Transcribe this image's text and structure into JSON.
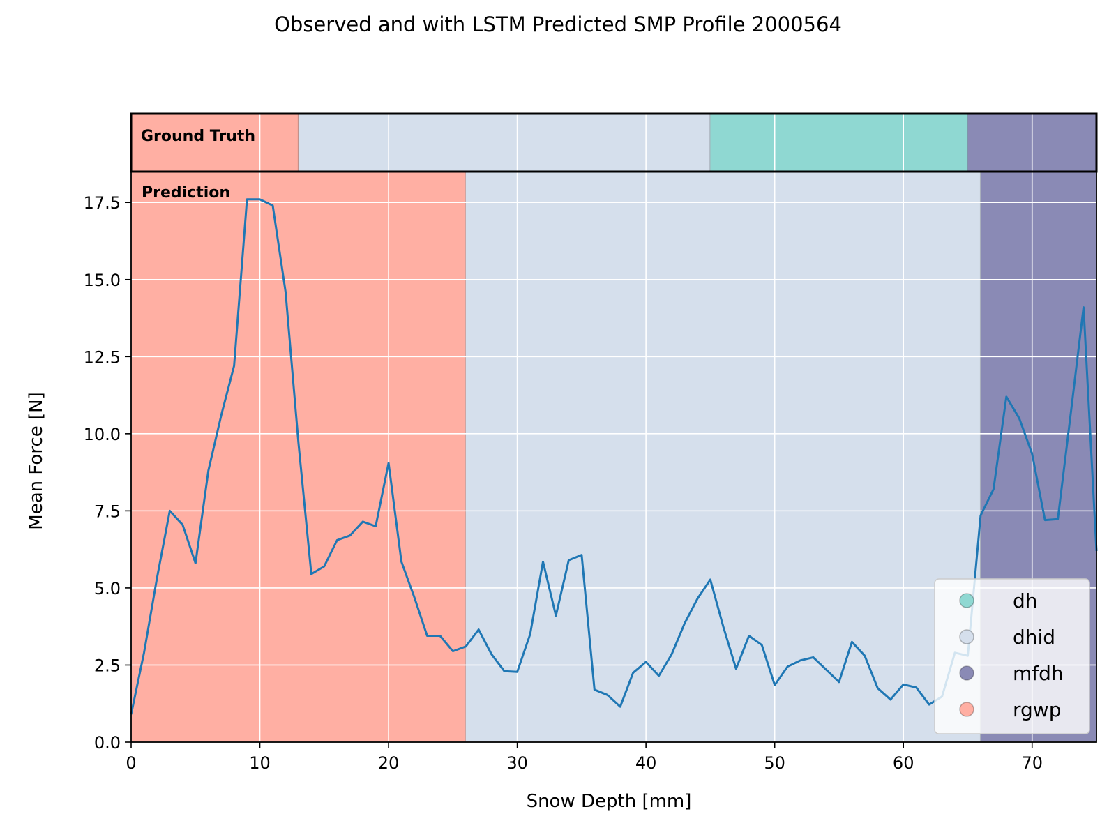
{
  "chart_data": {
    "type": "line",
    "title": "Observed and with LSTM Predicted SMP Profile 2000564",
    "xlabel": "Snow Depth [mm]",
    "ylabel": "Mean Force [N]",
    "xlim": [
      0,
      75
    ],
    "ylim": [
      0,
      18.5
    ],
    "x_ticks": [
      0,
      10,
      20,
      30,
      40,
      50,
      60,
      70
    ],
    "y_ticks": [
      "0.0",
      "2.5",
      "5.0",
      "7.5",
      "10.0",
      "12.5",
      "15.0",
      "17.5"
    ],
    "grid": true,
    "series": [
      {
        "color": "#1f77b4",
        "x": [
          0,
          1,
          2,
          3,
          4,
          5,
          6,
          7,
          8,
          9,
          10,
          11,
          12,
          13,
          14,
          15,
          16,
          17,
          18,
          19,
          20,
          21,
          22,
          23,
          24,
          25,
          26,
          27,
          28,
          29,
          30,
          31,
          32,
          33,
          34,
          35,
          36,
          37,
          38,
          39,
          40,
          41,
          42,
          43,
          44,
          45,
          46,
          47,
          48,
          49,
          50,
          51,
          52,
          53,
          54,
          55,
          56,
          57,
          58,
          59,
          60,
          61,
          62,
          63,
          64,
          65,
          66,
          67,
          68,
          69,
          70,
          71,
          72,
          73,
          74,
          75
        ],
        "y": [
          0.9,
          2.9,
          5.3,
          7.5,
          7.05,
          5.8,
          8.8,
          10.6,
          12.2,
          17.6,
          17.6,
          17.4,
          14.6,
          9.7,
          5.45,
          5.7,
          6.55,
          6.7,
          7.15,
          7.0,
          9.05,
          5.85,
          4.7,
          3.45,
          3.45,
          2.95,
          3.1,
          3.65,
          2.85,
          2.3,
          2.28,
          3.5,
          5.85,
          4.1,
          5.9,
          6.07,
          1.7,
          1.53,
          1.15,
          2.25,
          2.6,
          2.15,
          2.85,
          3.85,
          4.65,
          5.27,
          3.75,
          2.38,
          3.45,
          3.15,
          1.85,
          2.45,
          2.65,
          2.75,
          2.35,
          1.95,
          3.25,
          2.8,
          1.75,
          1.38,
          1.87,
          1.77,
          1.22,
          1.48,
          2.9,
          2.8,
          7.35,
          8.2,
          11.2,
          10.5,
          9.35,
          7.2,
          7.23,
          10.65,
          14.1,
          6.2
        ]
      }
    ],
    "tracks": [
      {
        "label": "Ground Truth",
        "segments": [
          {
            "class": "rgwp",
            "start": 0,
            "end": 13
          },
          {
            "class": "dhid",
            "start": 13,
            "end": 45
          },
          {
            "class": "dh",
            "start": 45,
            "end": 65
          },
          {
            "class": "mfdh",
            "start": 65,
            "end": 75
          }
        ]
      },
      {
        "label": "Prediction",
        "segments": [
          {
            "class": "rgwp",
            "start": 0,
            "end": 26
          },
          {
            "class": "dhid",
            "start": 26,
            "end": 66
          },
          {
            "class": "mfdh",
            "start": 66,
            "end": 75
          }
        ]
      }
    ],
    "legend": {
      "position": "bottom-right",
      "entries": [
        {
          "label": "dh",
          "color": "#8fd8d2"
        },
        {
          "label": "dhid",
          "color": "#d5dfec"
        },
        {
          "label": "mfdh",
          "color": "#8a8ab5"
        },
        {
          "label": "rgwp",
          "color": "#ffafa3"
        }
      ]
    }
  }
}
